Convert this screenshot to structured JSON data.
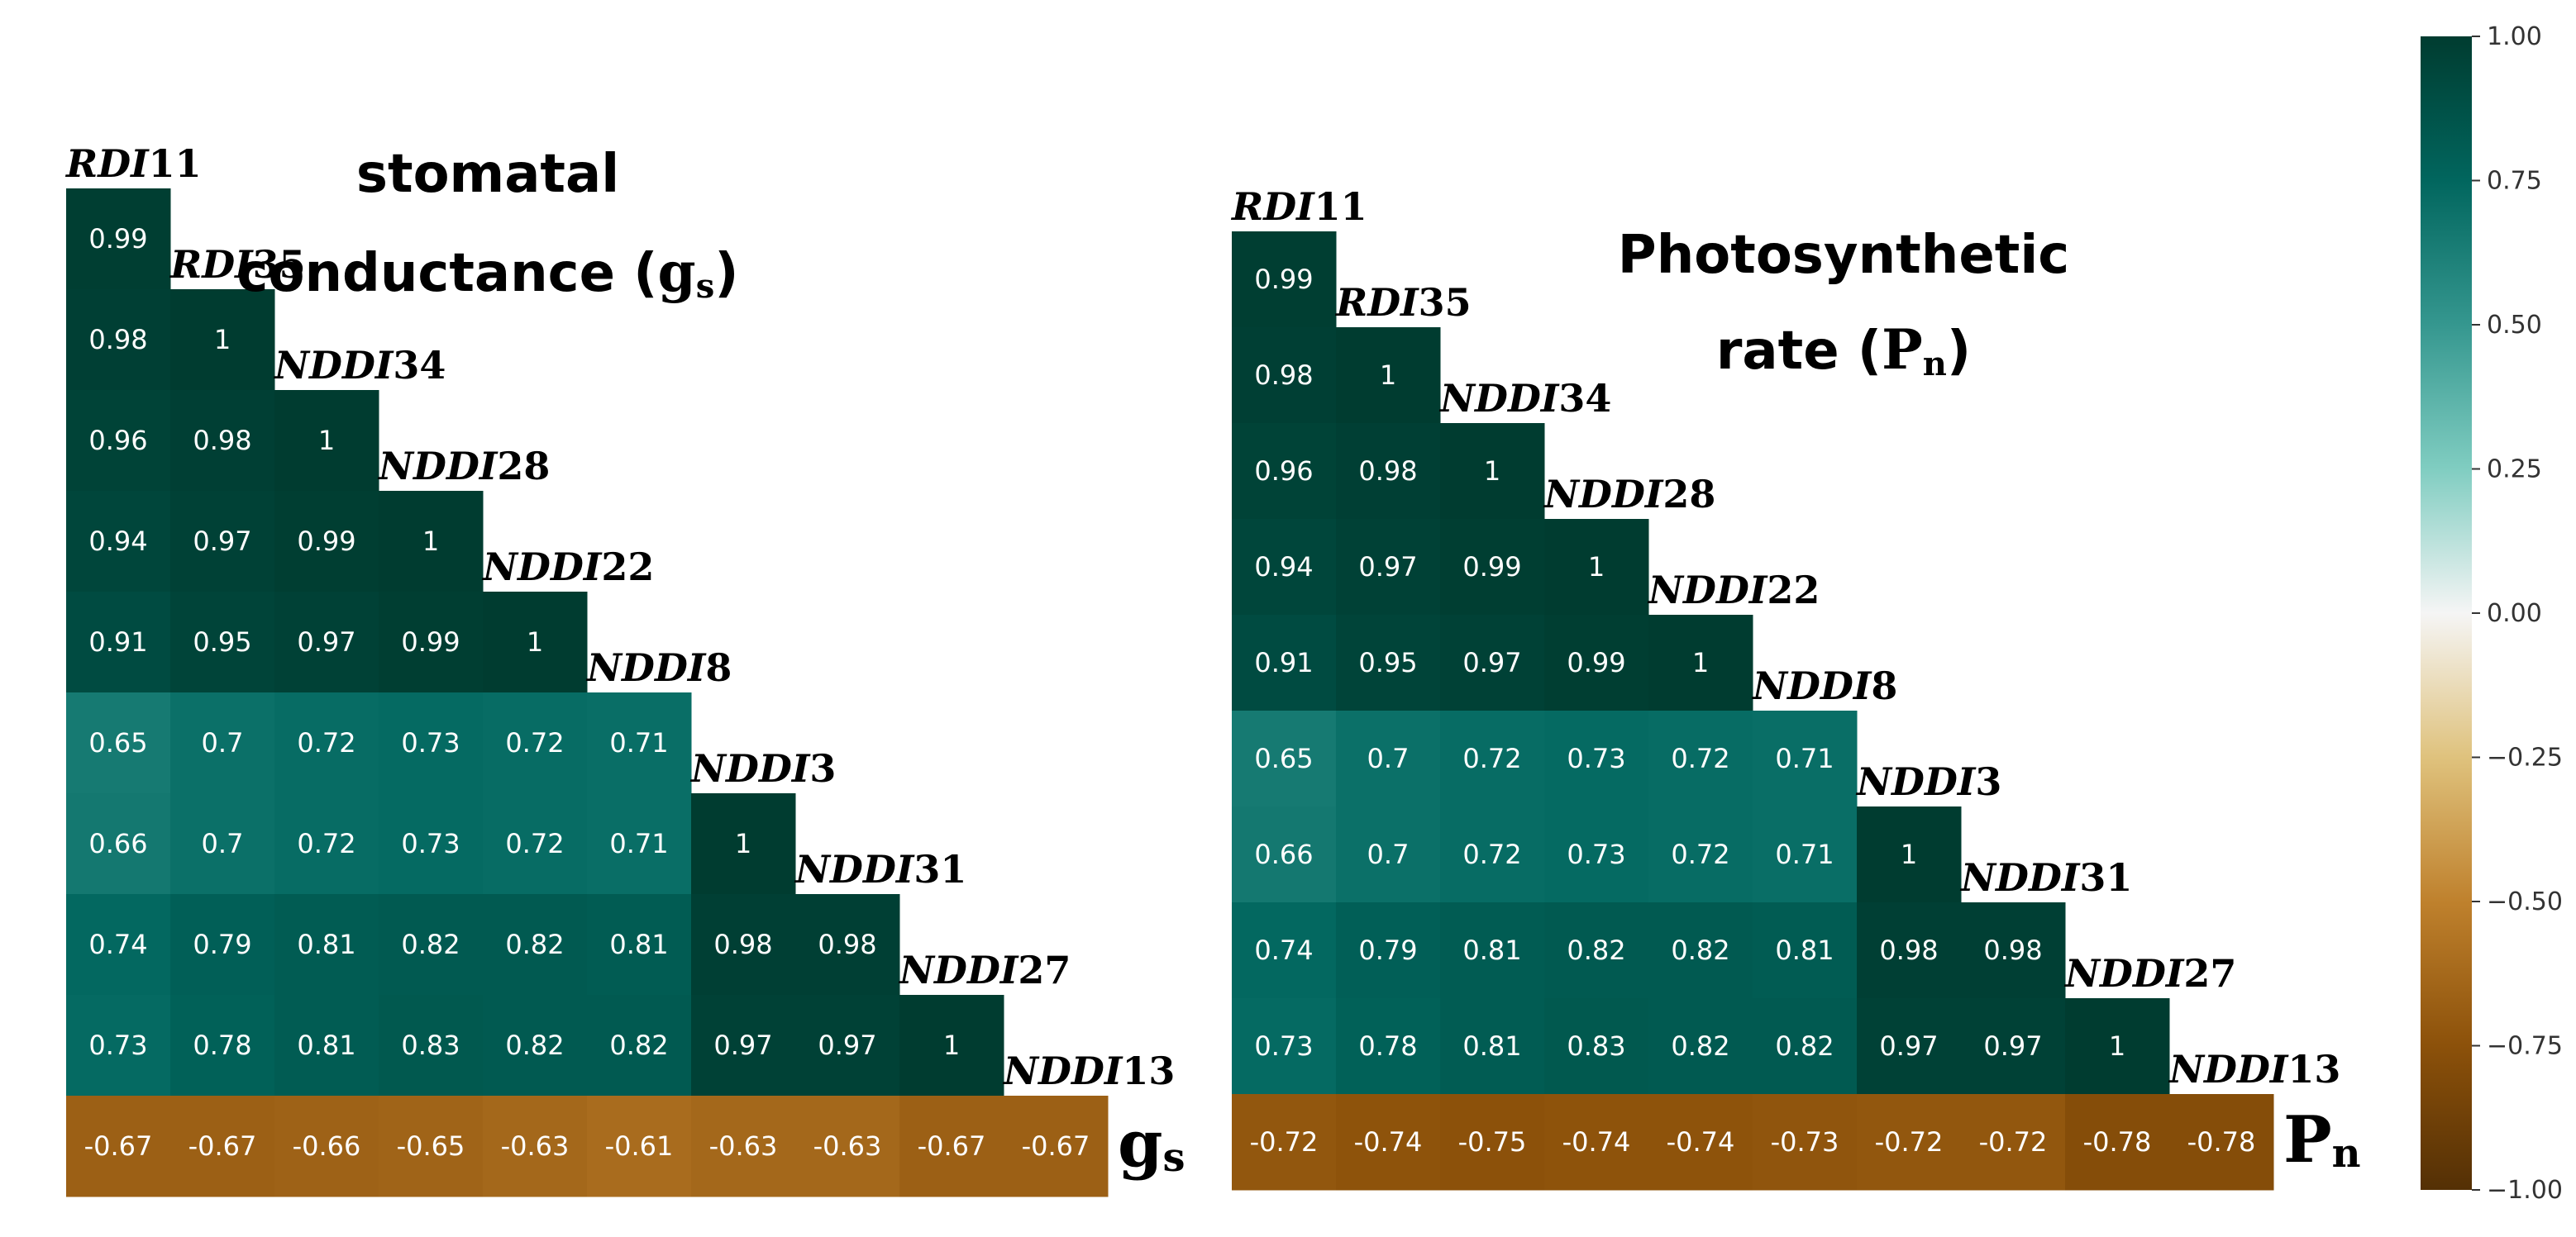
{
  "chart_data": [
    {
      "type": "heatmap",
      "title_line1": "stomatal",
      "title_line2": "conductance (",
      "title_symbol": "g",
      "title_symbol_sub": "s",
      "title_close": ")",
      "target_symbol": "g",
      "target_sub": "s",
      "row_label_parts": [
        {
          "it": "RDI",
          "num": "11"
        },
        {
          "it": "RDI",
          "num": "35"
        },
        {
          "it": "NDDI",
          "num": "34"
        },
        {
          "it": "NDDI",
          "num": "28"
        },
        {
          "it": "NDDI",
          "num": "22"
        },
        {
          "it": "NDDI",
          "num": "8"
        },
        {
          "it": "NDDI",
          "num": "3"
        },
        {
          "it": "NDDI",
          "num": "31"
        },
        {
          "it": "NDDI",
          "num": "27"
        },
        {
          "it": "NDDI",
          "num": "13"
        }
      ],
      "rows": [
        {
          "labels": [
            "0.99"
          ],
          "values": [
            0.99
          ]
        },
        {
          "labels": [
            "0.98",
            "1"
          ],
          "values": [
            0.98,
            1
          ]
        },
        {
          "labels": [
            "0.96",
            "0.98",
            "1"
          ],
          "values": [
            0.96,
            0.98,
            1
          ]
        },
        {
          "labels": [
            "0.94",
            "0.97",
            "0.99",
            "1"
          ],
          "values": [
            0.94,
            0.97,
            0.99,
            1
          ]
        },
        {
          "labels": [
            "0.91",
            "0.95",
            "0.97",
            "0.99",
            "1"
          ],
          "values": [
            0.91,
            0.95,
            0.97,
            0.99,
            1
          ]
        },
        {
          "labels": [
            "0.65",
            "0.7",
            "0.72",
            "0.73",
            "0.72",
            "0.71"
          ],
          "values": [
            0.65,
            0.7,
            0.72,
            0.73,
            0.72,
            0.71
          ]
        },
        {
          "labels": [
            "0.66",
            "0.7",
            "0.72",
            "0.73",
            "0.72",
            "0.71",
            "1"
          ],
          "values": [
            0.66,
            0.7,
            0.72,
            0.73,
            0.72,
            0.71,
            1
          ]
        },
        {
          "labels": [
            "0.74",
            "0.79",
            "0.81",
            "0.82",
            "0.82",
            "0.81",
            "0.98",
            "0.98"
          ],
          "values": [
            0.74,
            0.79,
            0.81,
            0.82,
            0.82,
            0.81,
            0.98,
            0.98
          ]
        },
        {
          "labels": [
            "0.73",
            "0.78",
            "0.81",
            "0.83",
            "0.82",
            "0.82",
            "0.97",
            "0.97",
            "1"
          ],
          "values": [
            0.73,
            0.78,
            0.81,
            0.83,
            0.82,
            0.82,
            0.97,
            0.97,
            1
          ]
        },
        {
          "labels": [
            "-0.67",
            "-0.67",
            "-0.66",
            "-0.65",
            "-0.63",
            "-0.61",
            "-0.63",
            "-0.63",
            "-0.67",
            "-0.67"
          ],
          "values": [
            -0.67,
            -0.67,
            -0.66,
            -0.65,
            -0.63,
            -0.61,
            -0.63,
            -0.63,
            -0.67,
            -0.67
          ]
        }
      ]
    },
    {
      "type": "heatmap",
      "title_line1": "Photosynthetic",
      "title_line2": "rate (",
      "title_symbol": "P",
      "title_symbol_sub": "n",
      "title_close": ")",
      "target_symbol": "P",
      "target_sub": "n",
      "row_label_parts": [
        {
          "it": "RDI",
          "num": "11"
        },
        {
          "it": "RDI",
          "num": "35"
        },
        {
          "it": "NDDI",
          "num": "34"
        },
        {
          "it": "NDDI",
          "num": "28"
        },
        {
          "it": "NDDI",
          "num": "22"
        },
        {
          "it": "NDDI",
          "num": "8"
        },
        {
          "it": "NDDI",
          "num": "3"
        },
        {
          "it": "NDDI",
          "num": "31"
        },
        {
          "it": "NDDI",
          "num": "27"
        },
        {
          "it": "NDDI",
          "num": "13"
        }
      ],
      "rows": [
        {
          "labels": [
            "0.99"
          ],
          "values": [
            0.99
          ]
        },
        {
          "labels": [
            "0.98",
            "1"
          ],
          "values": [
            0.98,
            1
          ]
        },
        {
          "labels": [
            "0.96",
            "0.98",
            "1"
          ],
          "values": [
            0.96,
            0.98,
            1
          ]
        },
        {
          "labels": [
            "0.94",
            "0.97",
            "0.99",
            "1"
          ],
          "values": [
            0.94,
            0.97,
            0.99,
            1
          ]
        },
        {
          "labels": [
            "0.91",
            "0.95",
            "0.97",
            "0.99",
            "1"
          ],
          "values": [
            0.91,
            0.95,
            0.97,
            0.99,
            1
          ]
        },
        {
          "labels": [
            "0.65",
            "0.7",
            "0.72",
            "0.73",
            "0.72",
            "0.71"
          ],
          "values": [
            0.65,
            0.7,
            0.72,
            0.73,
            0.72,
            0.71
          ]
        },
        {
          "labels": [
            "0.66",
            "0.7",
            "0.72",
            "0.73",
            "0.72",
            "0.71",
            "1"
          ],
          "values": [
            0.66,
            0.7,
            0.72,
            0.73,
            0.72,
            0.71,
            1
          ]
        },
        {
          "labels": [
            "0.74",
            "0.79",
            "0.81",
            "0.82",
            "0.82",
            "0.81",
            "0.98",
            "0.98"
          ],
          "values": [
            0.74,
            0.79,
            0.81,
            0.82,
            0.82,
            0.81,
            0.98,
            0.98
          ]
        },
        {
          "labels": [
            "0.73",
            "0.78",
            "0.81",
            "0.83",
            "0.82",
            "0.82",
            "0.97",
            "0.97",
            "1"
          ],
          "values": [
            0.73,
            0.78,
            0.81,
            0.83,
            0.82,
            0.82,
            0.97,
            0.97,
            1
          ]
        },
        {
          "labels": [
            "-0.72",
            "-0.74",
            "-0.75",
            "-0.74",
            "-0.74",
            "-0.73",
            "-0.72",
            "-0.72",
            "-0.78",
            "-0.78"
          ],
          "values": [
            -0.72,
            -0.74,
            -0.75,
            -0.74,
            -0.74,
            -0.73,
            -0.72,
            -0.72,
            -0.78,
            -0.78
          ]
        }
      ]
    }
  ],
  "colorbar": {
    "range": [
      -1,
      1
    ],
    "tick_labels": [
      "1.00",
      "0.75",
      "0.50",
      "0.25",
      "0.00",
      "−0.25",
      "−0.50",
      "−0.75",
      "−1.00"
    ],
    "tick_values": [
      1,
      0.75,
      0.5,
      0.25,
      0,
      -0.25,
      -0.5,
      -0.75,
      -1
    ],
    "colormap": "BrBG",
    "stops": [
      {
        "v": -1.0,
        "color": "#543005"
      },
      {
        "v": -0.75,
        "color": "#8c510a"
      },
      {
        "v": -0.5,
        "color": "#bf812d"
      },
      {
        "v": -0.25,
        "color": "#dfc27d"
      },
      {
        "v": 0.0,
        "color": "#f5f5f5"
      },
      {
        "v": 0.25,
        "color": "#80cdc1"
      },
      {
        "v": 0.5,
        "color": "#35978f"
      },
      {
        "v": 0.75,
        "color": "#01665e"
      },
      {
        "v": 1.0,
        "color": "#003c30"
      }
    ]
  }
}
